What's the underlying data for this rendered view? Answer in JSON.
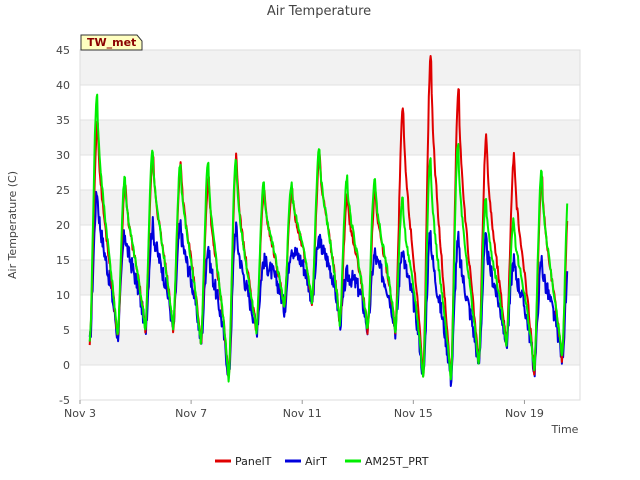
{
  "chart_data": {
    "type": "line",
    "title": "Air Temperature",
    "xlabel": "Time",
    "ylabel": "Air Temperature (C)",
    "station_label": "TW_met",
    "ylim": [
      -5,
      45
    ],
    "xlim": [
      3,
      21
    ],
    "y_ticks": [
      -5,
      0,
      5,
      10,
      15,
      20,
      25,
      30,
      35,
      40,
      45
    ],
    "x_ticks": [
      {
        "value": 3,
        "label": "Nov 3"
      },
      {
        "value": 7,
        "label": "Nov 7"
      },
      {
        "value": 11,
        "label": "Nov 11"
      },
      {
        "value": 15,
        "label": "Nov 15"
      },
      {
        "value": 19,
        "label": "Nov 19"
      }
    ],
    "grid": true,
    "legend_position": "bottom",
    "day_peaks": {
      "days": [
        3,
        4,
        5,
        6,
        7,
        8,
        9,
        10,
        11,
        12,
        13,
        14,
        15,
        16,
        17,
        18,
        19,
        20
      ],
      "PanelT_max": [
        35,
        26,
        30,
        29,
        27,
        30,
        25,
        25,
        30,
        24,
        25,
        37,
        45,
        40,
        33,
        30,
        27,
        27
      ],
      "AirT_max": [
        25,
        19,
        20,
        20,
        17,
        20,
        15,
        17,
        18,
        13,
        16,
        17,
        19,
        18,
        18,
        15,
        15,
        15
      ],
      "AM25T_PRT_max": [
        39,
        27,
        31,
        29,
        29,
        30,
        26,
        26,
        31,
        27,
        27,
        24,
        30,
        32,
        24,
        21,
        28,
        28
      ],
      "min": [
        3,
        4,
        5,
        5,
        3,
        -2,
        5,
        8,
        9,
        6,
        5,
        5,
        -2,
        -2,
        0,
        3,
        -1,
        1
      ]
    },
    "series": [
      {
        "name": "PanelT",
        "color": "#e00000"
      },
      {
        "name": "AirT",
        "color": "#0000dd"
      },
      {
        "name": "AM25T_PRT",
        "color": "#00ee00"
      }
    ]
  }
}
